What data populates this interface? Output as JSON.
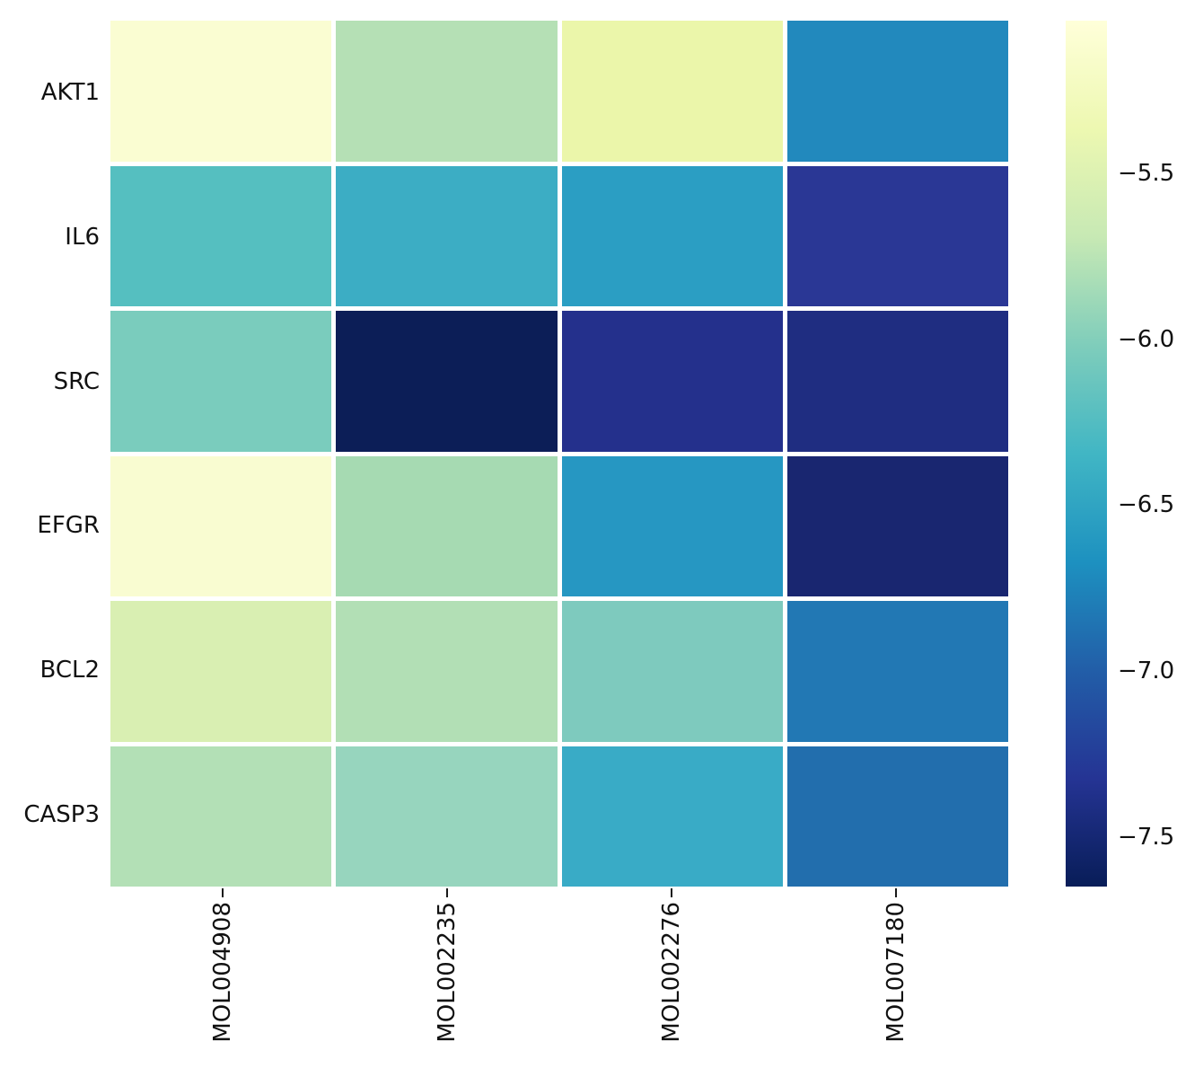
{
  "figure": {
    "background": "#ffffff",
    "text_color": "#111111",
    "cell_gap_color": "#ffffff"
  },
  "chart_data": {
    "type": "heatmap",
    "colormap": "YlGnBu (light yellow = high value, dark navy = low value)",
    "rows": [
      "AKT1",
      "IL6",
      "SRC",
      "EFGR",
      "BCL2",
      "CASP3"
    ],
    "columns": [
      "MOL004908",
      "MOL002235",
      "MOL002276",
      "MOL007180"
    ],
    "values": [
      [
        -5.05,
        -5.77,
        -5.38,
        -6.69
      ],
      [
        -6.22,
        -6.42,
        -6.54,
        -7.27
      ],
      [
        -6.02,
        -7.62,
        -7.37,
        -7.44
      ],
      [
        -5.06,
        -5.84,
        -6.58,
        -7.5
      ],
      [
        -5.54,
        -5.77,
        -6.04,
        -6.83
      ],
      [
        -5.77,
        -5.91,
        -6.38,
        -6.9
      ]
    ],
    "cell_colors": [
      [
        "#fafdd2",
        "#b5e0b5",
        "#ebf6aa",
        "#2289bd"
      ],
      [
        "#55bfc0",
        "#3cadc4",
        "#2b9ec3",
        "#2a3795"
      ],
      [
        "#7accbd",
        "#0c1e57",
        "#24308c",
        "#1f2d81"
      ],
      [
        "#f9fcd1",
        "#a6dab2",
        "#2697c2",
        "#192670"
      ],
      [
        "#d9efb2",
        "#b2dfb5",
        "#7ecabe",
        "#2278b4"
      ],
      [
        "#b3e0b6",
        "#97d5be",
        "#39abc6",
        "#226ead"
      ]
    ],
    "grid": false,
    "colorbar": {
      "position": "right",
      "vmax_top": -5.04,
      "vmin_bottom": -7.65,
      "tick_values": [
        -5.5,
        -6.0,
        -6.5,
        -7.0,
        -7.5
      ],
      "tick_labels": [
        "−5.5",
        "−6.0",
        "−6.5",
        "−7.0",
        "−7.5"
      ],
      "gradient_stops": [
        {
          "pos": 0.0,
          "color": "#ffffd9"
        },
        {
          "pos": 0.125,
          "color": "#edf8b1"
        },
        {
          "pos": 0.25,
          "color": "#c7e9b4"
        },
        {
          "pos": 0.375,
          "color": "#7fcdbb"
        },
        {
          "pos": 0.5,
          "color": "#41b6c4"
        },
        {
          "pos": 0.625,
          "color": "#1d91c0"
        },
        {
          "pos": 0.75,
          "color": "#225ea8"
        },
        {
          "pos": 0.875,
          "color": "#253494"
        },
        {
          "pos": 1.0,
          "color": "#081d58"
        }
      ]
    }
  }
}
